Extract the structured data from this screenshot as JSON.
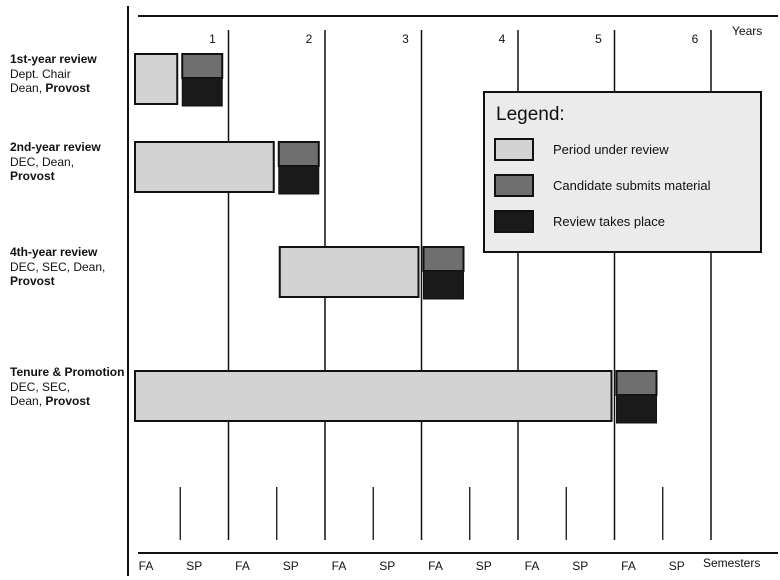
{
  "axis": {
    "years_label": "Years",
    "semesters_label": "Semesters",
    "year_numbers": [
      "1",
      "2",
      "3",
      "4",
      "5",
      "6"
    ],
    "semesters": [
      "FA",
      "SP",
      "FA",
      "SP",
      "FA",
      "SP",
      "FA",
      "SP",
      "FA",
      "SP",
      "FA",
      "SP"
    ]
  },
  "reviews": [
    {
      "title": "1st-year review",
      "lines": [
        [
          [
            "Dept. Chair",
            false
          ]
        ],
        [
          [
            "Dean, ",
            false
          ],
          [
            "Provost",
            true
          ]
        ]
      ],
      "period": [
        0,
        0.5
      ],
      "submit_semester": 1
    },
    {
      "title": "2nd-year review",
      "lines": [
        [
          [
            "DEC, Dean,",
            false
          ]
        ],
        [
          [
            "Provost",
            true
          ]
        ]
      ],
      "period": [
        0,
        1.5
      ],
      "submit_semester": 3
    },
    {
      "title": "4th-year review",
      "lines": [
        [
          [
            "DEC, SEC, Dean,",
            false
          ]
        ],
        [
          [
            "Provost",
            true
          ]
        ]
      ],
      "period": [
        1.5,
        3
      ],
      "submit_semester": 6
    },
    {
      "title": "Tenure & Promotion",
      "lines": [
        [
          [
            "DEC, SEC,",
            false
          ]
        ],
        [
          [
            "Dean, ",
            false
          ],
          [
            "Provost",
            true
          ]
        ]
      ],
      "period": [
        0,
        5
      ],
      "submit_semester": 10
    }
  ],
  "legend": {
    "title": "Legend:",
    "items": [
      {
        "label": "Period under review",
        "color": "#d3d3d3"
      },
      {
        "label": "Candidate submits material",
        "color": "#6f6f6f"
      },
      {
        "label": "Review takes place",
        "color": "#1a1a1a"
      }
    ]
  },
  "colors": {
    "period": "#d3d3d3",
    "submit": "#6f6f6f",
    "review": "#1a1a1a",
    "line": "#111111",
    "legend_bg": "#ebebeb"
  }
}
